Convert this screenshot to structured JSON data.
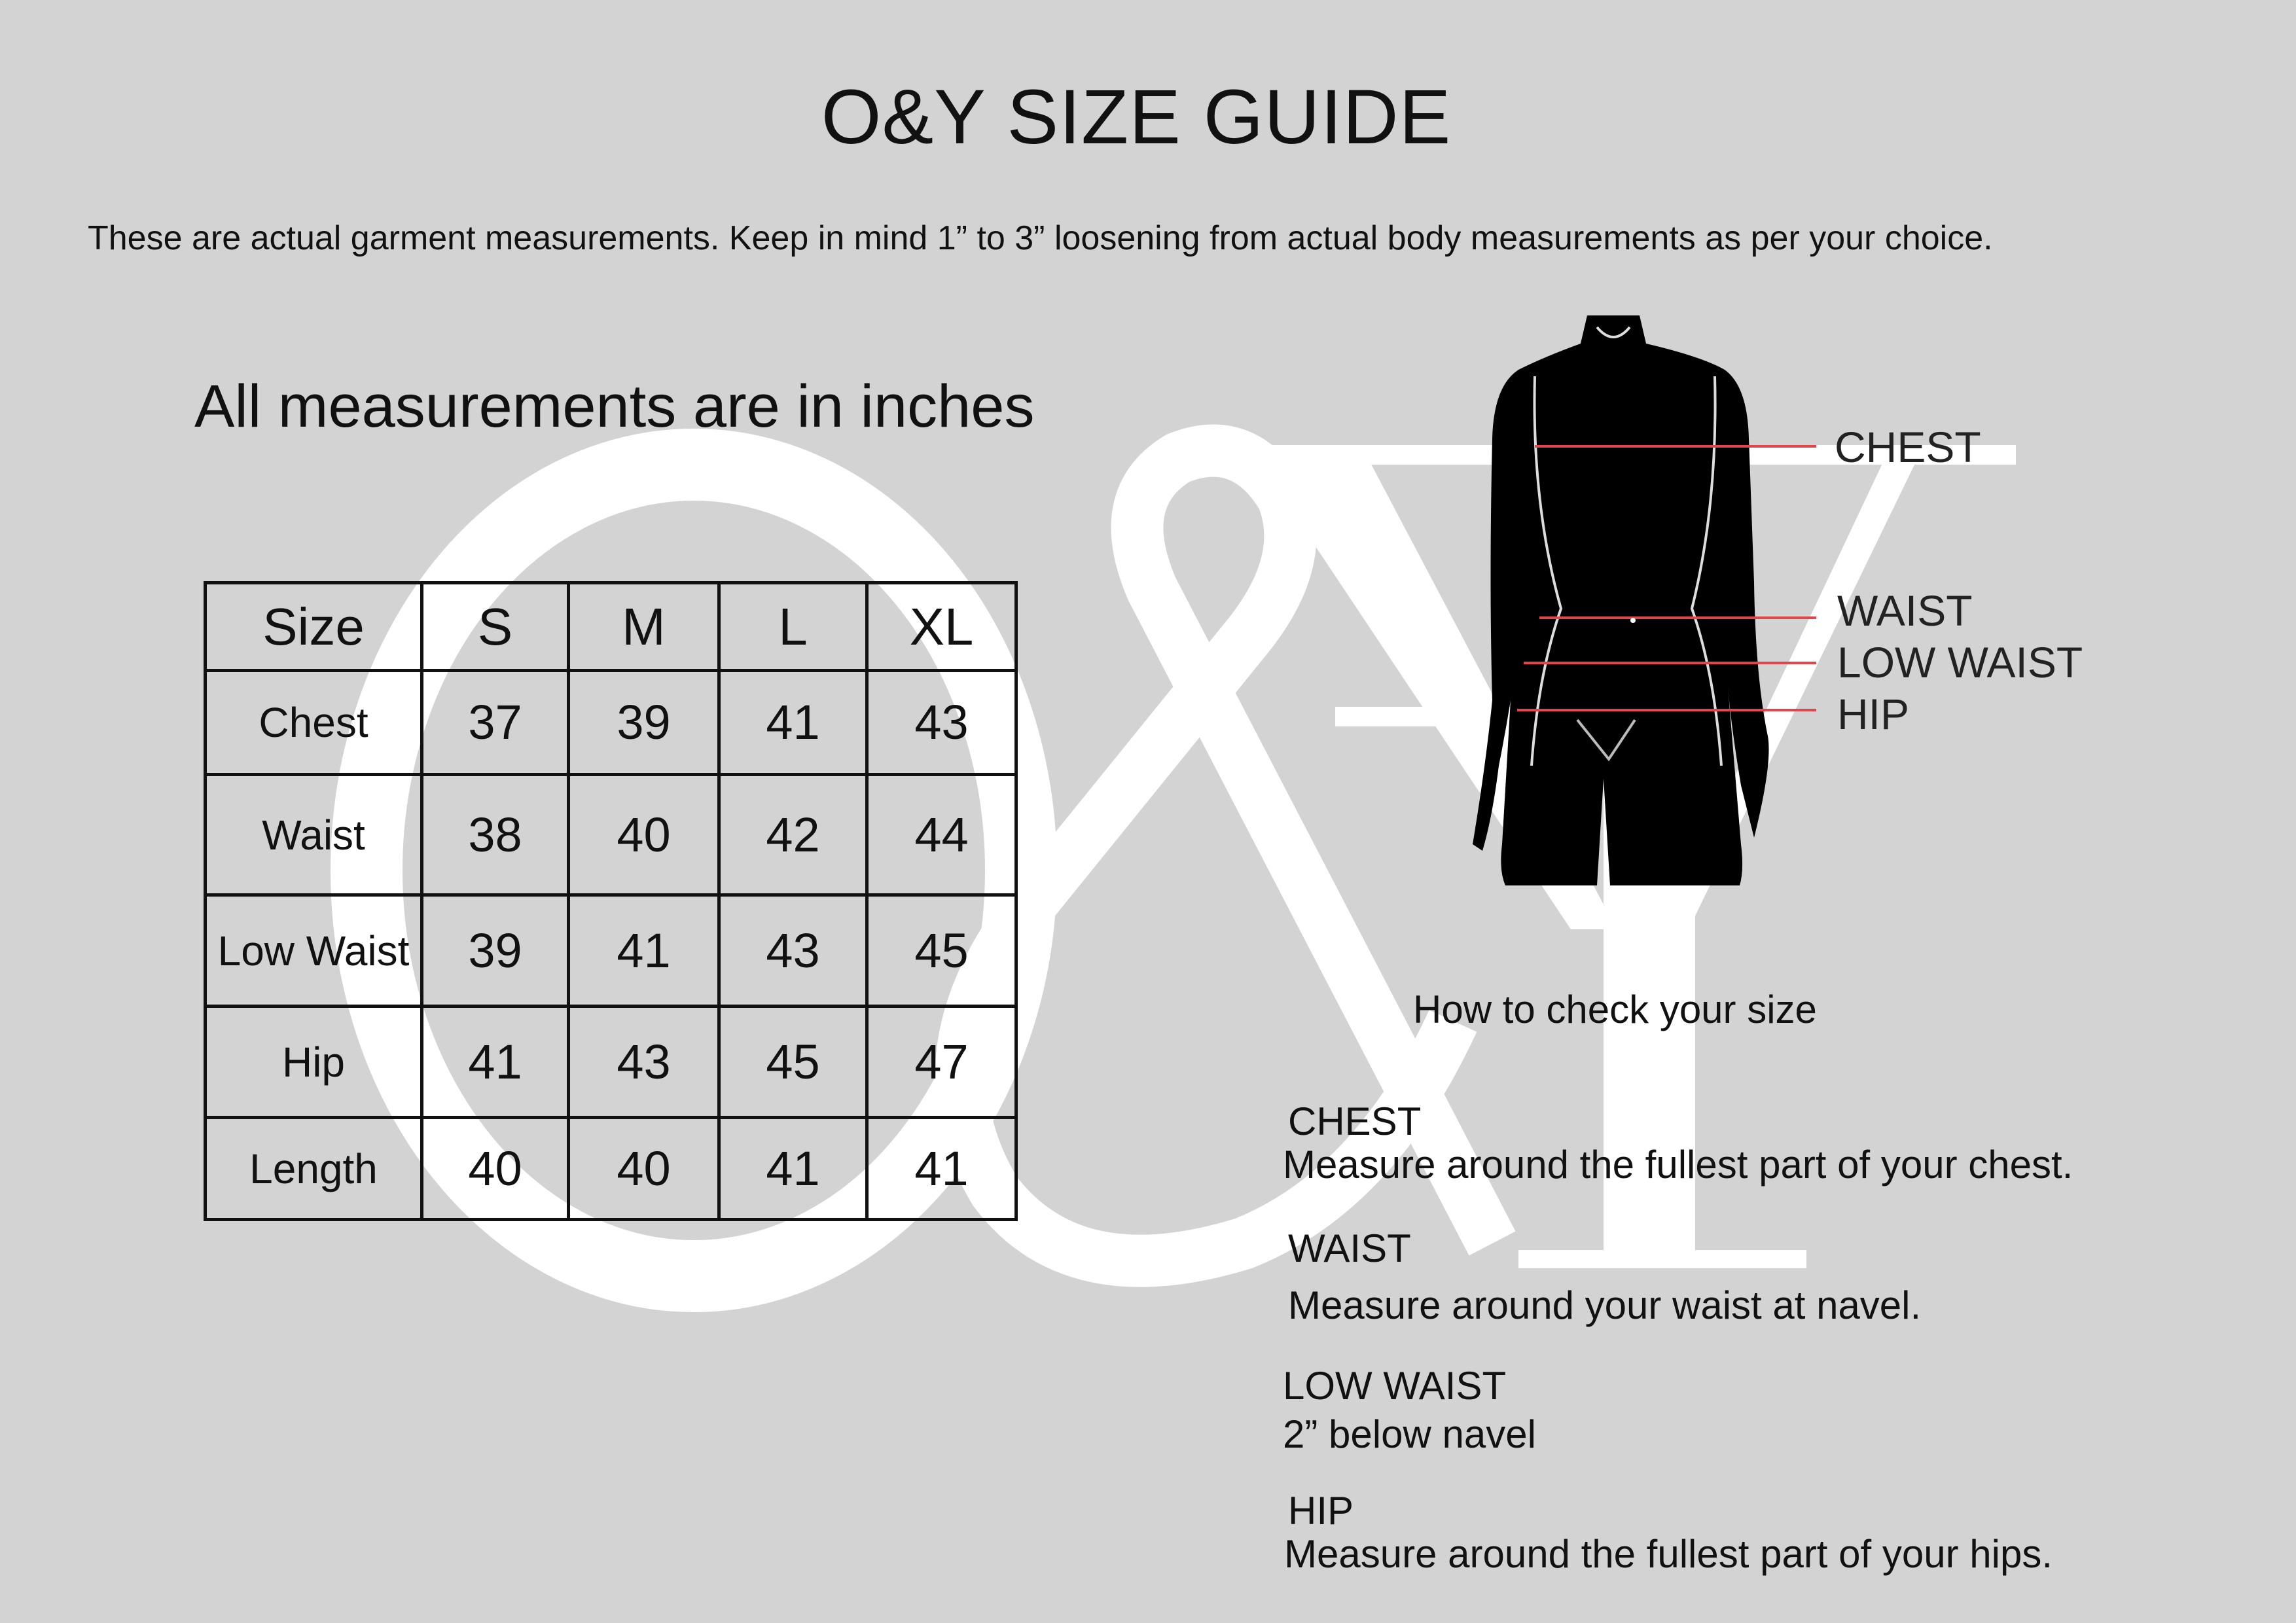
{
  "title": "O&Y SIZE GUIDE",
  "subtitle": "These are actual garment measurements. Keep in mind 1” to 3” loosening from actual body measurements as per your choice.",
  "units_note": "All measurements are in inches",
  "watermark": {
    "text": "O&Y",
    "color": "#ffffff"
  },
  "table": {
    "header": [
      "Size",
      "S",
      "M",
      "L",
      "XL"
    ],
    "rows": [
      {
        "label": "Chest",
        "values": [
          "37",
          "39",
          "41",
          "43"
        ]
      },
      {
        "label": "Waist",
        "values": [
          "38",
          "40",
          "42",
          "44"
        ]
      },
      {
        "label": "Low Waist",
        "values": [
          "39",
          "41",
          "43",
          "45"
        ]
      },
      {
        "label": "Hip",
        "values": [
          "41",
          "43",
          "45",
          "47"
        ]
      },
      {
        "label": "Length",
        "values": [
          "40",
          "40",
          "41",
          "41"
        ]
      }
    ]
  },
  "figure": {
    "labels": [
      "CHEST",
      "WAIST",
      "LOW WAIST",
      "HIP"
    ],
    "line_color": "#e0474c"
  },
  "how_to": {
    "heading": "How to check your size",
    "items": [
      {
        "title": "CHEST",
        "desc": "Measure around the fullest part of your chest."
      },
      {
        "title": "WAIST",
        "desc": "Measure around your waist at navel."
      },
      {
        "title": "LOW WAIST",
        "desc": "2” below navel"
      },
      {
        "title": "HIP",
        "desc": "Measure around the fullest part of your hips."
      }
    ]
  }
}
